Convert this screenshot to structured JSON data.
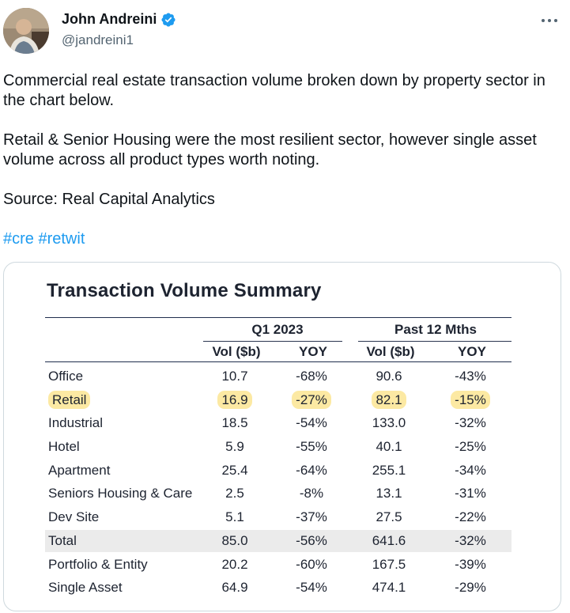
{
  "author": {
    "name": "John Andreini",
    "handle": "@jandreini1",
    "verified": true
  },
  "tweet": {
    "paragraphs": [
      "Commercial real estate transaction volume broken down by property sector in the chart below.",
      "Retail & Senior Housing were the most resilient sector, however single asset volume across all product types worth noting.",
      "Source:  Real Capital Analytics"
    ],
    "hashtags": [
      "#cre",
      "#retwit"
    ]
  },
  "table": {
    "title": "Transaction Volume Summary",
    "groups": [
      "Q1 2023",
      "Past 12 Mths"
    ],
    "subheaders": [
      "Vol ($b)",
      "YOY",
      "Vol ($b)",
      "YOY"
    ],
    "rows": [
      {
        "label": "Office",
        "cells": [
          "10.7",
          "-68%",
          "90.6",
          "-43%"
        ]
      },
      {
        "label": "Retail",
        "cells": [
          "16.9",
          "-27%",
          "82.1",
          "-15%"
        ]
      },
      {
        "label": "Industrial",
        "cells": [
          "18.5",
          "-54%",
          "133.0",
          "-32%"
        ]
      },
      {
        "label": "Hotel",
        "cells": [
          "5.9",
          "-55%",
          "40.1",
          "-25%"
        ]
      },
      {
        "label": "Apartment",
        "cells": [
          "25.4",
          "-64%",
          "255.1",
          "-34%"
        ]
      },
      {
        "label": "Seniors Housing & Care",
        "cells": [
          "2.5",
          "-8%",
          "13.1",
          "-31%"
        ]
      },
      {
        "label": "Dev Site",
        "cells": [
          "5.1",
          "-37%",
          "27.5",
          "-22%"
        ]
      },
      {
        "label": "Total",
        "cells": [
          "85.0",
          "-56%",
          "641.6",
          "-32%"
        ]
      },
      {
        "label": "Portfolio & Entity",
        "cells": [
          "20.2",
          "-60%",
          "167.5",
          "-39%"
        ]
      },
      {
        "label": "Single Asset",
        "cells": [
          "64.9",
          "-54%",
          "474.1",
          "-29%"
        ]
      }
    ]
  },
  "colors": {
    "link": "#1d9bf0",
    "verified": "#1d9bf0",
    "highlight": "#fce9a3",
    "total_row_shade": "#ebebeb"
  },
  "icons": {
    "verified": "verified-badge-icon",
    "more": "more-dots-icon"
  }
}
